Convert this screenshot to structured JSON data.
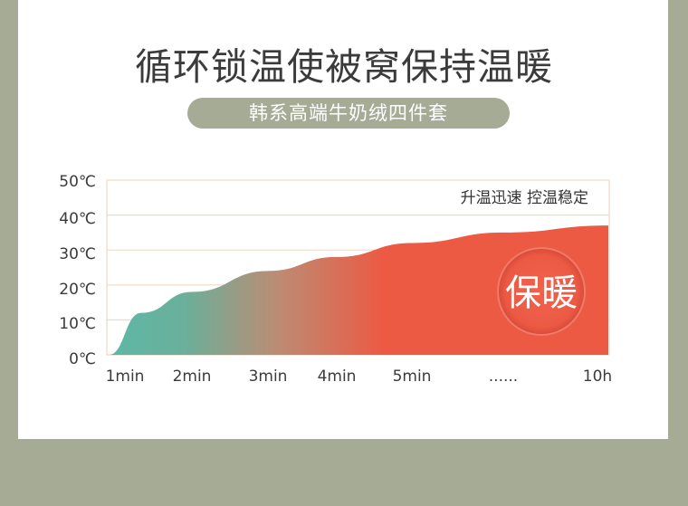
{
  "headline": "循环锁温使被窝保持温暖",
  "subtitle_pill": "韩系高端牛奶绒四件套",
  "colors": {
    "background": "#a6ab96",
    "card": "#ffffff",
    "curve_start": "#5db8a5",
    "curve_end": "#ec5a44",
    "grid": "#eddcc8",
    "text": "#3b3b3b"
  },
  "chart_data": {
    "type": "area",
    "y_tick_labels": [
      "50℃",
      "40℃",
      "30℃",
      "20℃",
      "10℃",
      "0℃"
    ],
    "x_tick_labels": [
      "1min",
      "2min",
      "3min",
      "4min",
      "5min",
      "......",
      "10h"
    ],
    "ylim": [
      0,
      50
    ],
    "grid": true,
    "annotation": "升温迅速 控温稳定",
    "badge": "保暖",
    "series": [
      {
        "x": [
          "1min",
          "1.5min",
          "2min",
          "3min",
          "4min",
          "5min",
          "......",
          "10h"
        ],
        "values": [
          0,
          12,
          18,
          24,
          28,
          32,
          35,
          37
        ]
      }
    ]
  }
}
